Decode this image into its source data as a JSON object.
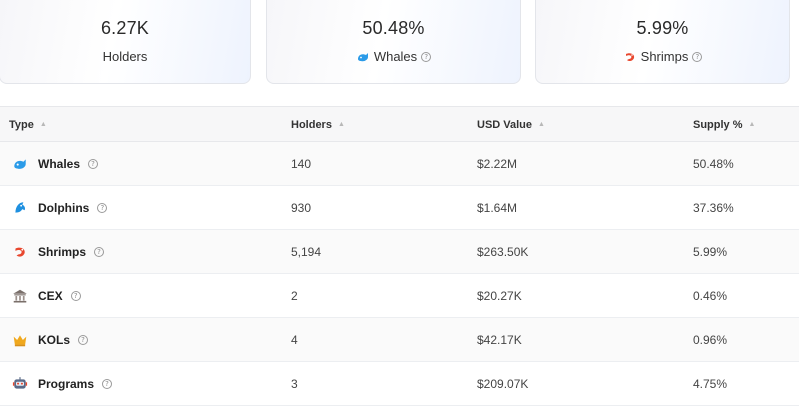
{
  "summary": [
    {
      "value": "6.27K",
      "label": "Holders"
    },
    {
      "value": "50.48%",
      "label": "Whales",
      "icon": "whale-icon"
    },
    {
      "value": "5.99%",
      "label": "Shrimps",
      "icon": "shrimp-icon"
    }
  ],
  "table": {
    "headers": [
      "Type",
      "Holders",
      "USD Value",
      "Supply %"
    ],
    "rows": [
      {
        "type": "Whales",
        "icon": "whale-icon",
        "holders": "140",
        "usd": "$2.22M",
        "supply": "50.48%"
      },
      {
        "type": "Dolphins",
        "icon": "dolphin-icon",
        "holders": "930",
        "usd": "$1.64M",
        "supply": "37.36%"
      },
      {
        "type": "Shrimps",
        "icon": "shrimp-icon",
        "holders": "5,194",
        "usd": "$263.50K",
        "supply": "5.99%"
      },
      {
        "type": "CEX",
        "icon": "bank-icon",
        "holders": "2",
        "usd": "$20.27K",
        "supply": "0.46%"
      },
      {
        "type": "KOLs",
        "icon": "crown-icon",
        "holders": "4",
        "usd": "$42.17K",
        "supply": "0.96%"
      },
      {
        "type": "Programs",
        "icon": "robot-icon",
        "holders": "3",
        "usd": "$209.07K",
        "supply": "4.75%"
      }
    ]
  },
  "colors": {
    "whale": "#2b9be8",
    "dolphin": "#1e90e0",
    "shrimp": "#e8472e",
    "bank": "#7a6f6a",
    "crown": "#f0a81c",
    "robot": "#5a6a88"
  }
}
